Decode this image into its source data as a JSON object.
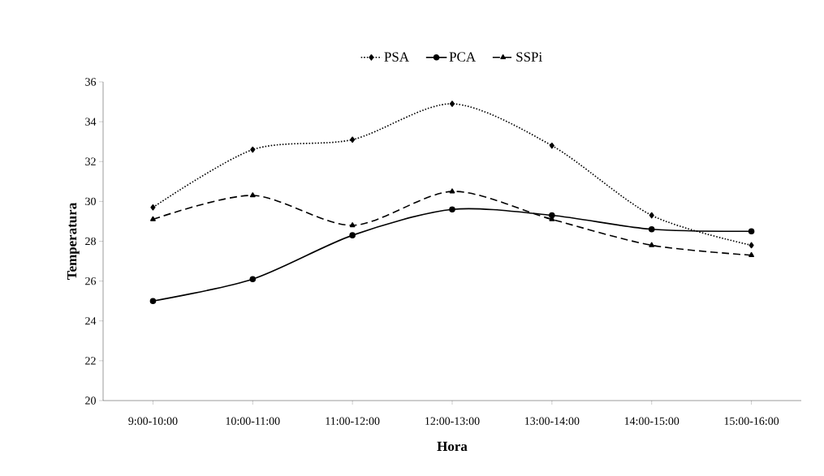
{
  "chart_data": {
    "type": "line",
    "xlabel": "Hora",
    "ylabel": "Temperatura",
    "categories": [
      "9:00-10:00",
      "10:00-11:00",
      "11:00-12:00",
      "12:00-13:00",
      "13:00-14:00",
      "14:00-15:00",
      "15:00-16:00"
    ],
    "series": [
      {
        "name": "PSA",
        "color": "#000000",
        "marker": "diamond",
        "line_style": "dotted",
        "values": [
          29.7,
          32.6,
          33.1,
          34.9,
          32.8,
          29.3,
          27.8
        ]
      },
      {
        "name": "PCA",
        "color": "#000000",
        "marker": "circle",
        "line_style": "solid",
        "values": [
          25.0,
          26.1,
          28.3,
          29.6,
          29.3,
          28.6,
          28.5
        ]
      },
      {
        "name": "SSPi",
        "color": "#000000",
        "marker": "triangle",
        "line_style": "dashed",
        "values": [
          29.1,
          30.3,
          28.8,
          30.5,
          29.1,
          27.8,
          27.3
        ]
      }
    ],
    "ylim": [
      20,
      36
    ],
    "yticks": [
      20,
      22,
      24,
      26,
      28,
      30,
      32,
      34,
      36
    ],
    "grid": false,
    "legend": "top"
  }
}
